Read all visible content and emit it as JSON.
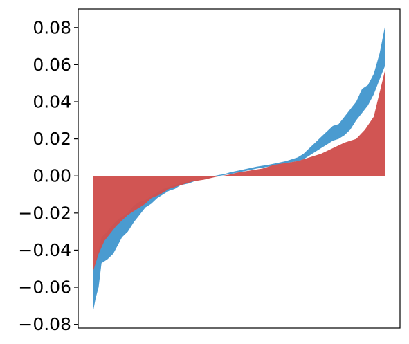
{
  "chart_data": {
    "type": "area",
    "title": "",
    "xlabel": "",
    "ylabel": "",
    "ylim": [
      -0.082,
      0.09
    ],
    "yticks": [
      -0.08,
      -0.06,
      -0.04,
      -0.02,
      0.0,
      0.02,
      0.04,
      0.06,
      0.08
    ],
    "ytick_labels": [
      "−0.08",
      "−0.06",
      "−0.04",
      "−0.02",
      "0.00",
      "0.02",
      "0.04",
      "0.06",
      "0.08"
    ],
    "xticks_visible": false,
    "grid": false,
    "legend": "none",
    "series": [
      {
        "color": "#4a9bd0",
        "x": [
          0,
          0.01,
          0.02,
          0.03,
          0.05,
          0.07,
          0.09,
          0.1,
          0.12,
          0.14,
          0.16,
          0.18,
          0.2,
          0.22,
          0.24,
          0.26,
          0.28,
          0.3,
          0.33,
          0.36,
          0.4,
          0.43,
          0.45,
          0.47,
          0.5,
          0.53,
          0.56,
          0.6,
          0.63,
          0.66,
          0.7,
          0.72,
          0.74,
          0.76,
          0.78,
          0.8,
          0.82,
          0.84,
          0.86,
          0.88,
          0.9,
          0.92,
          0.94,
          0.96,
          0.98,
          1
        ],
        "upper": [
          -0.052,
          -0.046,
          -0.04,
          -0.033,
          -0.03,
          -0.026,
          -0.023,
          -0.022,
          -0.02,
          -0.016,
          -0.014,
          -0.013,
          -0.011,
          -0.009,
          -0.007,
          -0.006,
          -0.005,
          -0.004,
          -0.003,
          -0.002,
          -0.0005,
          0.0005,
          0.001,
          0.002,
          0.003,
          0.004,
          0.005,
          0.006,
          0.007,
          0.008,
          0.01,
          0.012,
          0.015,
          0.018,
          0.021,
          0.024,
          0.027,
          0.028,
          0.032,
          0.036,
          0.04,
          0.047,
          0.049,
          0.055,
          0.066,
          0.082
        ],
        "lower": [
          -0.074,
          -0.066,
          -0.06,
          -0.047,
          -0.045,
          -0.042,
          -0.036,
          -0.033,
          -0.03,
          -0.025,
          -0.021,
          -0.017,
          -0.015,
          -0.012,
          -0.01,
          -0.008,
          -0.007,
          -0.005,
          -0.004,
          -0.002,
          -0.001,
          0.0,
          0.0005,
          0.001,
          0.002,
          0.003,
          0.004,
          0.005,
          0.006,
          0.007,
          0.008,
          0.009,
          0.011,
          0.013,
          0.015,
          0.017,
          0.019,
          0.02,
          0.022,
          0.025,
          0.03,
          0.034,
          0.038,
          0.044,
          0.052,
          0.06
        ]
      },
      {
        "color": "#d0504d",
        "x": [
          0,
          0.02,
          0.04,
          0.06,
          0.08,
          0.1,
          0.12,
          0.15,
          0.18,
          0.2,
          0.23,
          0.26,
          0.3,
          0.34,
          0.38,
          0.42,
          0.46,
          0.5,
          0.54,
          0.58,
          0.62,
          0.66,
          0.7,
          0.74,
          0.78,
          0.82,
          0.86,
          0.9,
          0.93,
          0.96,
          1
        ],
        "values": [
          -0.052,
          -0.042,
          -0.035,
          -0.031,
          -0.027,
          -0.024,
          -0.021,
          -0.018,
          -0.015,
          -0.012,
          -0.01,
          -0.007,
          -0.005,
          -0.003,
          -0.002,
          -0.0005,
          0.0005,
          0.002,
          0.003,
          0.004,
          0.006,
          0.007,
          0.008,
          0.01,
          0.012,
          0.015,
          0.018,
          0.02,
          0.025,
          0.032,
          0.058
        ]
      }
    ]
  }
}
